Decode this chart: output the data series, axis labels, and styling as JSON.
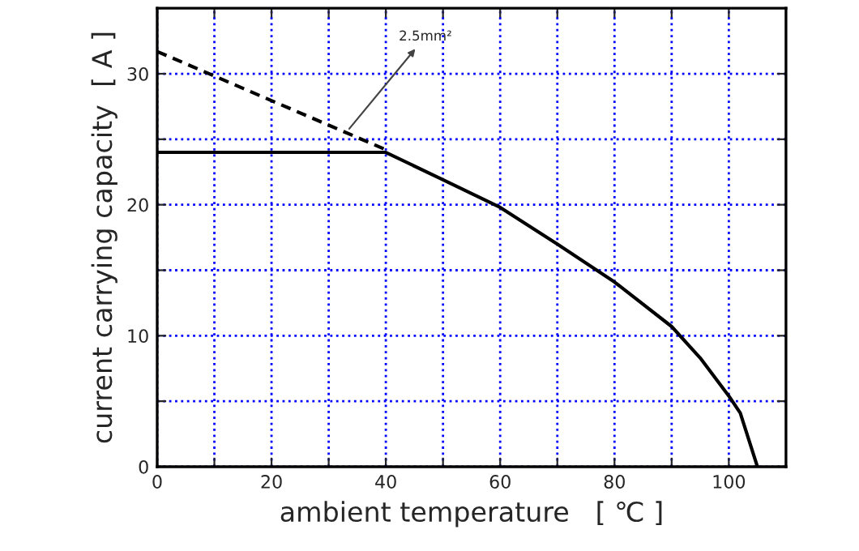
{
  "chart_data": {
    "type": "line",
    "xlabel": "ambient temperature   [ ℃ ]",
    "ylabel": "current carrying capacity  [ A ]",
    "series": [
      {
        "color": "#000000",
        "line_style": "dashed",
        "x": [
          0,
          40
        ],
        "values": [
          31.7,
          24.2
        ]
      },
      {
        "color": "#000000",
        "line_style": "solid",
        "x": [
          0,
          40,
          50,
          60,
          70,
          80,
          90,
          95,
          100,
          102,
          105
        ],
        "values": [
          24.0,
          24.0,
          21.9,
          19.8,
          17.0,
          14.1,
          10.7,
          8.3,
          5.4,
          4.1,
          0
        ]
      }
    ],
    "annotations": [
      {
        "text": "2.5mm²",
        "x": 33.6,
        "y": 25.8
      }
    ],
    "xlim": [
      0,
      110
    ],
    "ylim": [
      0,
      35
    ],
    "xticks": [
      0,
      {
        "value": 10,
        "label": null
      },
      20,
      {
        "value": 30,
        "label": null
      },
      40,
      {
        "value": 50,
        "label": null
      },
      60,
      {
        "value": 70,
        "label": null
      },
      80,
      {
        "value": 90,
        "label": null
      },
      100
    ],
    "yticks": [
      0,
      {
        "value": 5,
        "label": null
      },
      10,
      {
        "value": 15,
        "label": null
      },
      20,
      {
        "value": 25,
        "label": null
      },
      30
    ],
    "grid": true,
    "marker": "none"
  }
}
